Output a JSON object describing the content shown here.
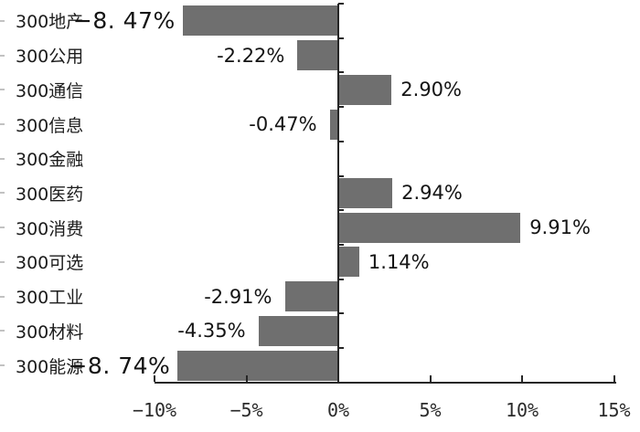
{
  "chart_data": {
    "type": "bar",
    "orientation": "horizontal",
    "title": "",
    "categories": [
      "300地产",
      "300公用",
      "300通信",
      "300信息",
      "300金融",
      "300医药",
      "300消费",
      "300可选",
      "300工业",
      "300材料",
      "300能源"
    ],
    "values": [
      -8.47,
      -2.22,
      2.9,
      -0.47,
      0,
      2.94,
      9.91,
      1.14,
      -2.91,
      -4.35,
      -8.74
    ],
    "bar_labels": [
      "−8. 47%",
      "-2.22%",
      "2.90%",
      "-0.47%",
      "",
      "2.94%",
      "9.91%",
      "1.14%",
      "-2.91%",
      "-4.35%",
      "−8. 74%"
    ],
    "label_size": [
      "large",
      "normal",
      "normal",
      "normal",
      "normal",
      "normal",
      "normal",
      "normal",
      "normal",
      "normal",
      "large"
    ],
    "x_ticks": [
      {
        "value": -10,
        "label": "−10%"
      },
      {
        "value": -5,
        "label": "−5%"
      },
      {
        "value": 0,
        "label": "0%"
      },
      {
        "value": 5,
        "label": "5%"
      },
      {
        "value": 10,
        "label": "10%"
      },
      {
        "value": 15,
        "label": "15%"
      }
    ],
    "xlim": [
      -10,
      15
    ],
    "bar_color": "#6f6f6f",
    "axis_color": "#262626",
    "grid": false,
    "legend": null
  }
}
